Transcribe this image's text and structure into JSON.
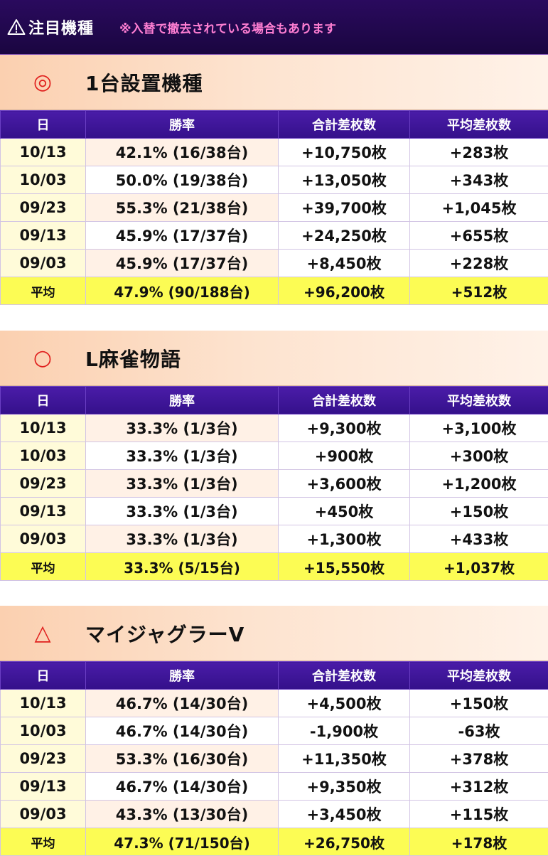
{
  "topbar": {
    "title": "注目機種",
    "note": "※入替で撤去されている場合もあります",
    "icon": "warning-icon"
  },
  "headers": {
    "date": "日",
    "rate": "勝率",
    "total": "合計差枚数",
    "average": "平均差枚数"
  },
  "sections": [
    {
      "mark": "◎",
      "title": "1台設置機種",
      "rows": [
        {
          "date": "10/13",
          "rate": "42.1% (16/38台)",
          "total": "+10,750枚",
          "avg": "+283枚"
        },
        {
          "date": "10/03",
          "rate": "50.0% (19/38台)",
          "total": "+13,050枚",
          "avg": "+343枚"
        },
        {
          "date": "09/23",
          "rate": "55.3% (21/38台)",
          "total": "+39,700枚",
          "avg": "+1,045枚"
        },
        {
          "date": "09/13",
          "rate": "45.9% (17/37台)",
          "total": "+24,250枚",
          "avg": "+655枚"
        },
        {
          "date": "09/03",
          "rate": "45.9% (17/37台)",
          "total": "+8,450枚",
          "avg": "+228枚"
        }
      ],
      "summary": {
        "date": "平均",
        "rate": "47.9% (90/188台)",
        "total": "+96,200枚",
        "avg": "+512枚"
      }
    },
    {
      "mark": "○",
      "title": "L麻雀物語",
      "rows": [
        {
          "date": "10/13",
          "rate": "33.3% (1/3台)",
          "total": "+9,300枚",
          "avg": "+3,100枚"
        },
        {
          "date": "10/03",
          "rate": "33.3% (1/3台)",
          "total": "+900枚",
          "avg": "+300枚"
        },
        {
          "date": "09/23",
          "rate": "33.3% (1/3台)",
          "total": "+3,600枚",
          "avg": "+1,200枚"
        },
        {
          "date": "09/13",
          "rate": "33.3% (1/3台)",
          "total": "+450枚",
          "avg": "+150枚"
        },
        {
          "date": "09/03",
          "rate": "33.3% (1/3台)",
          "total": "+1,300枚",
          "avg": "+433枚"
        }
      ],
      "summary": {
        "date": "平均",
        "rate": "33.3% (5/15台)",
        "total": "+15,550枚",
        "avg": "+1,037枚"
      }
    },
    {
      "mark": "△",
      "title": "マイジャグラーV",
      "rows": [
        {
          "date": "10/13",
          "rate": "46.7% (14/30台)",
          "total": "+4,500枚",
          "avg": "+150枚"
        },
        {
          "date": "10/03",
          "rate": "46.7% (14/30台)",
          "total": "-1,900枚",
          "avg": "-63枚"
        },
        {
          "date": "09/23",
          "rate": "53.3% (16/30台)",
          "total": "+11,350枚",
          "avg": "+378枚"
        },
        {
          "date": "09/13",
          "rate": "46.7% (14/30台)",
          "total": "+9,350枚",
          "avg": "+312枚"
        },
        {
          "date": "09/03",
          "rate": "43.3% (13/30台)",
          "total": "+3,450枚",
          "avg": "+115枚"
        }
      ],
      "summary": {
        "date": "平均",
        "rate": "47.3% (71/150台)",
        "total": "+26,750枚",
        "avg": "+178枚"
      }
    }
  ]
}
